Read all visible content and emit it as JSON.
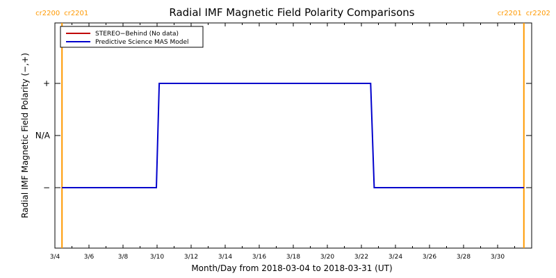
{
  "chart_data": {
    "type": "line",
    "title": "Radial IMF Magnetic Field Polarity Comparisons",
    "xlabel": "Month/Day from 2018-03-04 to 2018-03-31 (UT)",
    "ylabel": "Radial IMF Magnetic Field Polarity (−,+)",
    "x_domain": [
      "2018-03-04",
      "2018-03-31"
    ],
    "x_ticks": [
      "3/4",
      "3/6",
      "3/8",
      "3/10",
      "3/12",
      "3/14",
      "3/16",
      "3/18",
      "3/20",
      "3/22",
      "3/24",
      "3/26",
      "3/28",
      "3/30"
    ],
    "y_categories": [
      "−",
      "N/A",
      "+"
    ],
    "series": [
      {
        "name": "STEREO−Behind (No data)",
        "color": "#c00000",
        "points": []
      },
      {
        "name": "Predictive Science MAS Model",
        "color": "#0000cc",
        "points": [
          {
            "x": "2018-03-04 10:00",
            "y": "−"
          },
          {
            "x": "2018-03-09 23:00",
            "y": "−"
          },
          {
            "x": "2018-03-10 03:00",
            "y": "+"
          },
          {
            "x": "2018-03-22 13:00",
            "y": "+"
          },
          {
            "x": "2018-03-22 18:00",
            "y": "−"
          },
          {
            "x": "2018-03-31 13:00",
            "y": "−"
          }
        ]
      }
    ],
    "carrington_markers": [
      {
        "x": "2018-03-04 10:00",
        "left_label": "cr2200",
        "right_label": "cr2201",
        "color": "#ff9900"
      },
      {
        "x": "2018-03-31 13:00",
        "left_label": "cr2201",
        "right_label": "cr2202",
        "color": "#ff9900"
      }
    ],
    "legend_position": "top-left",
    "grid": false
  }
}
